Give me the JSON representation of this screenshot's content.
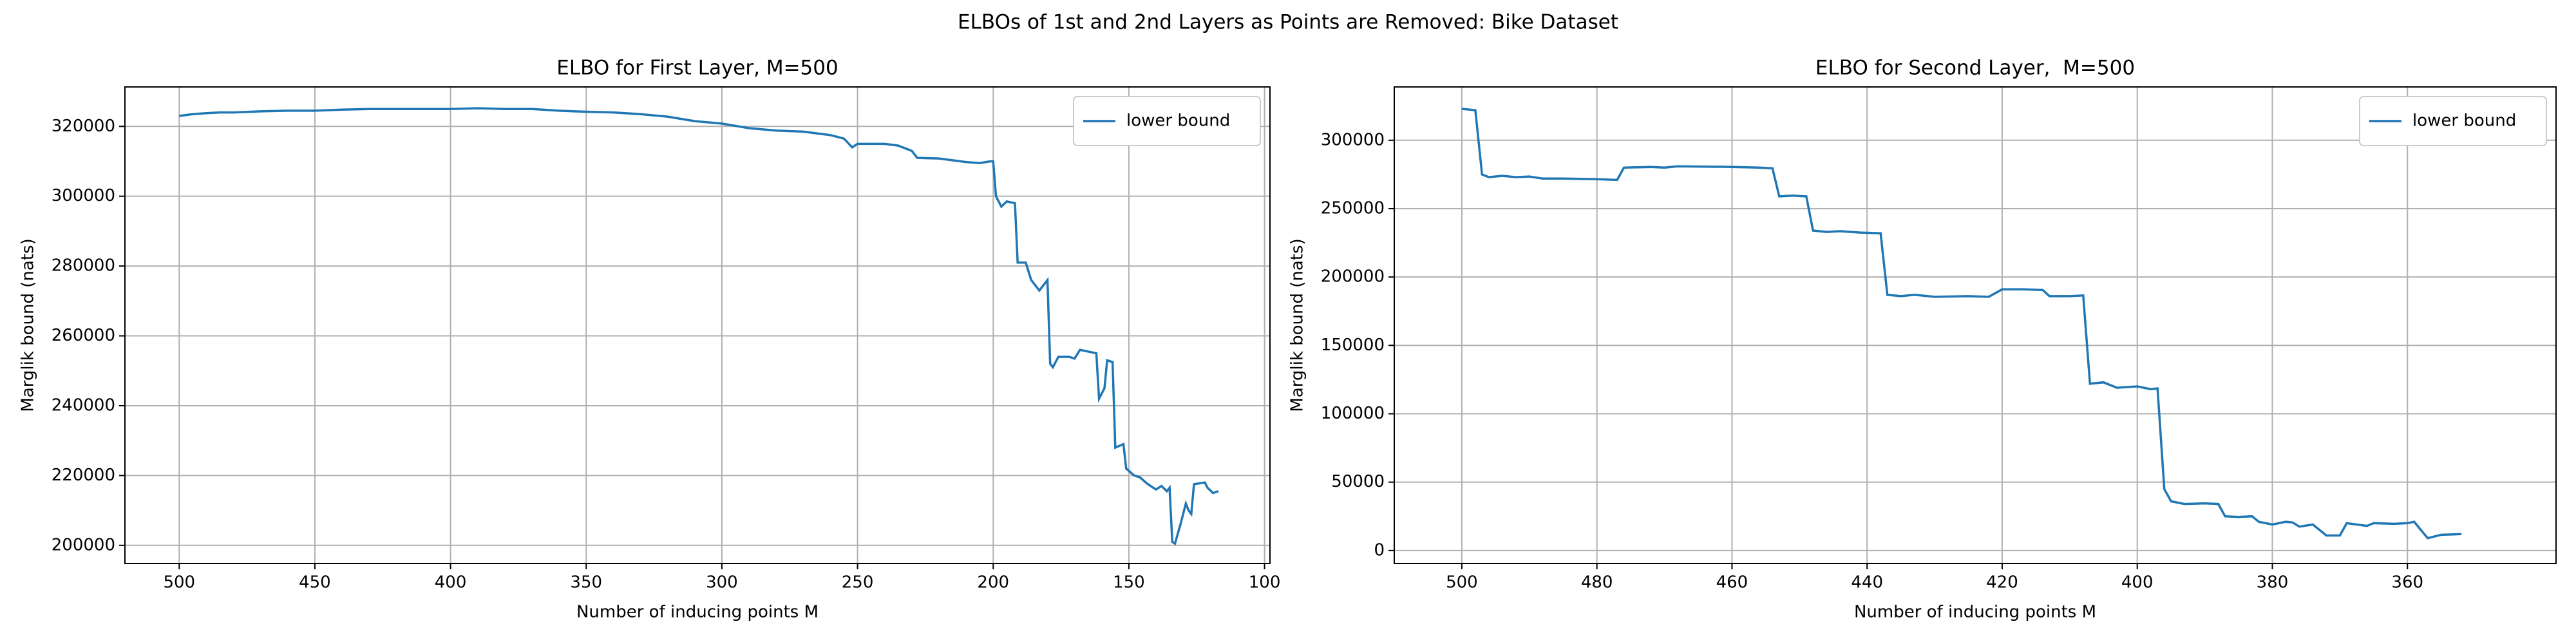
{
  "title": "ELBOs of 1st and 2nd Layers as Points are Removed: Bike Dataset",
  "chart_data": [
    {
      "type": "line",
      "title": "ELBO for First Layer, M=500",
      "x_label": "Number of inducing points M",
      "y_label": "Marglik bound (nats)",
      "xlim": [
        520,
        98
      ],
      "ylim": [
        194800,
        331300
      ],
      "xticks": [
        500,
        450,
        400,
        350,
        300,
        250,
        200,
        150,
        100
      ],
      "yticks": [
        200000,
        220000,
        240000,
        260000,
        280000,
        300000,
        320000
      ],
      "grid": true,
      "legend": "upper right",
      "x": [
        500,
        495,
        490,
        485,
        480,
        470,
        460,
        450,
        440,
        430,
        420,
        410,
        400,
        390,
        380,
        370,
        360,
        350,
        340,
        330,
        320,
        310,
        300,
        290,
        280,
        270,
        260,
        255,
        252,
        250,
        240,
        235,
        230,
        228,
        220,
        210,
        205,
        201,
        200,
        199,
        197,
        195,
        192,
        191,
        188,
        186,
        183,
        180,
        179,
        178,
        176,
        172,
        170,
        168,
        165,
        162,
        161,
        159,
        158,
        156,
        155,
        152,
        151,
        148,
        146,
        143,
        140,
        138,
        136,
        135,
        134,
        133,
        131,
        129,
        128,
        127,
        126,
        122,
        121,
        119,
        117
      ],
      "series": [
        {
          "name": "lower bound",
          "color": "#1f77b4",
          "values": [
            323000,
            323500,
            323800,
            324000,
            324000,
            324300,
            324500,
            324500,
            324800,
            325000,
            325000,
            325000,
            325000,
            325200,
            325000,
            325000,
            324500,
            324200,
            324000,
            323500,
            322800,
            321500,
            320800,
            319500,
            318800,
            318500,
            317500,
            316500,
            314000,
            315000,
            315000,
            314500,
            313000,
            311000,
            310800,
            309800,
            309500,
            310000,
            310000,
            300000,
            297000,
            298500,
            298000,
            281000,
            281000,
            276000,
            273000,
            276000,
            252000,
            251000,
            254000,
            254000,
            253500,
            256000,
            255500,
            255000,
            242000,
            245000,
            253000,
            252500,
            228000,
            229000,
            222000,
            220000,
            219500,
            217500,
            216000,
            217000,
            215500,
            216500,
            201000,
            200500,
            206000,
            212000,
            210000,
            209000,
            217500,
            218000,
            216500,
            215000,
            215500
          ]
        }
      ]
    },
    {
      "type": "line",
      "title": "ELBO for Second Layer,  M=500",
      "x_label": "Number of inducing points M",
      "y_label": "Marglik bound (nats)",
      "xlim": [
        510,
        338
      ],
      "ylim": [
        -9500,
        339000
      ],
      "xticks": [
        500,
        480,
        460,
        440,
        420,
        400,
        380,
        360
      ],
      "yticks": [
        0,
        50000,
        100000,
        150000,
        200000,
        250000,
        300000
      ],
      "grid": true,
      "legend": "upper right",
      "x": [
        500,
        498,
        497,
        496,
        494,
        492,
        490,
        488,
        485,
        480,
        477,
        476,
        472,
        470,
        468,
        460,
        456,
        454,
        453,
        451,
        449,
        448,
        446,
        444,
        441,
        438,
        437,
        435,
        433,
        430,
        425,
        422,
        420,
        417,
        414,
        413,
        410,
        408,
        407,
        405,
        403,
        400,
        398,
        397,
        396,
        395,
        393,
        390,
        388,
        387,
        385,
        383,
        382,
        380,
        378,
        377,
        376,
        374,
        372,
        370,
        369,
        366,
        365,
        362,
        360,
        359,
        357,
        355,
        352
      ],
      "series": [
        {
          "name": "lower bound",
          "color": "#1f77b4",
          "values": [
            323000,
            322000,
            275000,
            273000,
            274000,
            273000,
            273500,
            272000,
            272000,
            271500,
            271000,
            280000,
            280500,
            280000,
            281000,
            280500,
            280000,
            279500,
            259000,
            259500,
            259000,
            234000,
            233000,
            233500,
            232500,
            232000,
            187000,
            186000,
            187000,
            185500,
            186000,
            185500,
            191000,
            191000,
            190500,
            186000,
            186000,
            186500,
            122000,
            123000,
            119000,
            120000,
            118000,
            118500,
            45000,
            36000,
            34000,
            34500,
            34000,
            25000,
            24500,
            25000,
            21000,
            19000,
            21000,
            20500,
            17500,
            19000,
            11000,
            11000,
            20000,
            18000,
            20000,
            19500,
            20000,
            21000,
            9000,
            11500,
            12000
          ]
        }
      ]
    }
  ]
}
